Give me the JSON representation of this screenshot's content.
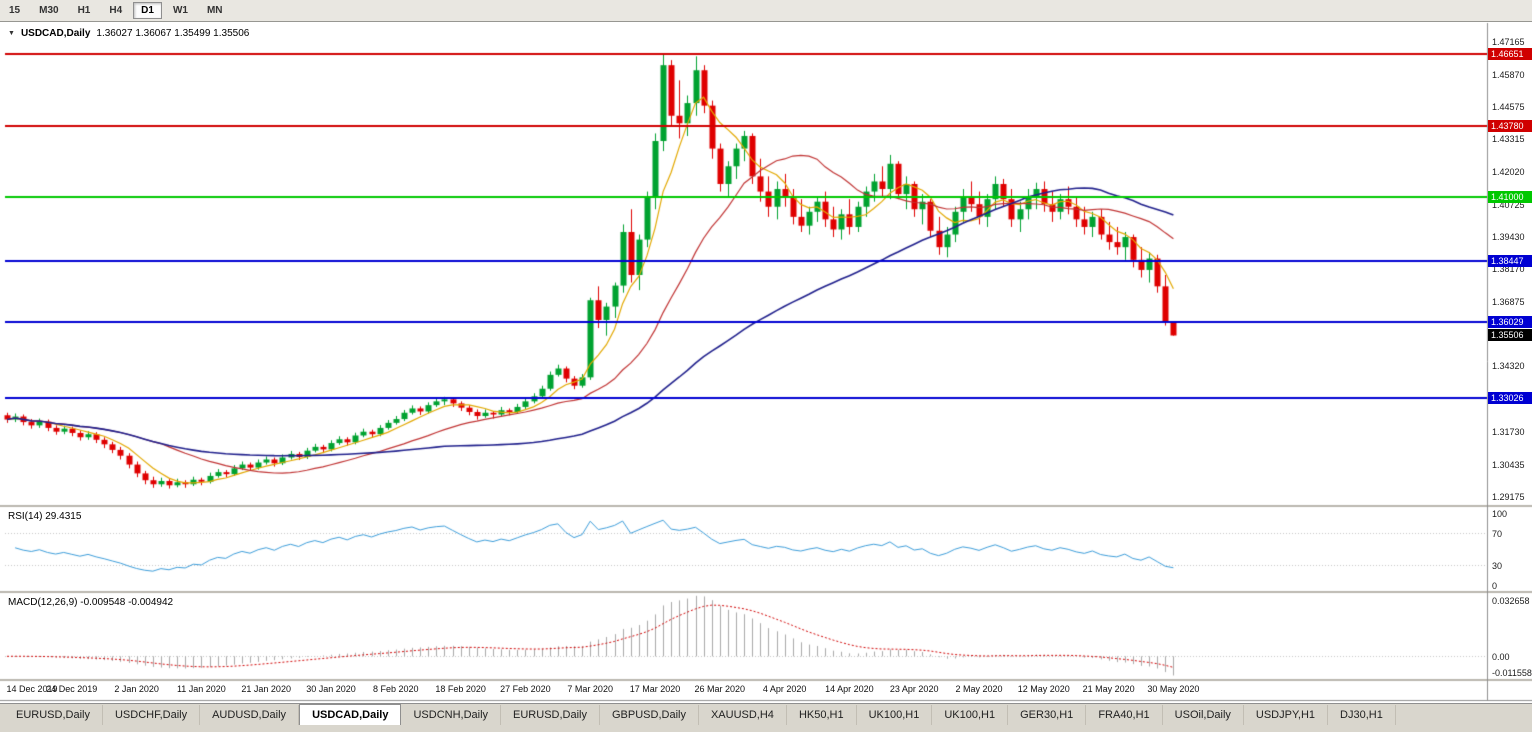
{
  "timeframe_toolbar": {
    "buttons": [
      "15",
      "M30",
      "H1",
      "H4",
      "D1",
      "W1",
      "MN"
    ],
    "active": "D1"
  },
  "chart_header": {
    "title": "USDCAD,Daily",
    "ohlc": "1.36027 1.36067 1.35499 1.35506"
  },
  "rsi_panel": {
    "label": "RSI(14) 29.4315",
    "last_value": 29.4315,
    "scale_ticks": [
      100,
      70,
      30,
      0
    ]
  },
  "macd_panel": {
    "label": "MACD(12,26,9) -0.009548 -0.004942",
    "last_main": -0.009548,
    "last_signal": -0.004942,
    "scale_top_label": "0.032658",
    "scale_zero_label": "0.00",
    "scale_bottom_label": "-0.011558"
  },
  "tabbar": {
    "tabs": [
      "EURUSD,Daily",
      "USDCHF,Daily",
      "AUDUSD,Daily",
      "USDCAD,Daily",
      "USDCNH,Daily",
      "EURUSD,Daily",
      "GBPUSD,Daily",
      "XAUUSD,H4",
      "HK50,H1",
      "UK100,H1",
      "UK100,H1",
      "GER30,H1",
      "FRA40,H1",
      "USOil,Daily",
      "USDJPY,H1",
      "DJ30,H1"
    ],
    "active_index": 3
  },
  "colors": {
    "bull": "#00A230",
    "bear": "#DF0000",
    "rsi_line": "#3B9CD9",
    "macd_bar": "#A8A8A8",
    "macd_signal": "#D00000",
    "current_price_badge": "#000000"
  },
  "chart_data": {
    "type": "candlestick",
    "title": "USDCAD,Daily",
    "y_range": [
      1.288,
      1.4775
    ],
    "current_price": 1.35506,
    "price_axis_ticks": [
      1.47165,
      1.4587,
      1.44575,
      1.43315,
      1.4202,
      1.40725,
      1.3943,
      1.3817,
      1.36875,
      1.3432,
      1.3173,
      1.30435,
      1.29175
    ],
    "hlines": [
      {
        "value": 1.46651,
        "color": "#D00000"
      },
      {
        "value": 1.4378,
        "color": "#D00000"
      },
      {
        "value": 1.41,
        "color": "#00C800"
      },
      {
        "value": 1.38447,
        "color": "#0000D2"
      },
      {
        "value": 1.36029,
        "color": "#0000D2"
      },
      {
        "value": 1.33026,
        "color": "#0000D2"
      }
    ],
    "moving_averages": [
      {
        "period": 6,
        "color": "#E2A800"
      },
      {
        "period": 20,
        "color": "#C03333"
      },
      {
        "period": 55,
        "color": "#20208C"
      }
    ],
    "indicators": [
      {
        "name": "RSI",
        "period": 14,
        "last": 29.4315
      },
      {
        "name": "MACD",
        "fast": 12,
        "slow": 26,
        "signal": 9,
        "last_main": -0.009548,
        "last_signal": -0.004942
      }
    ],
    "date_labels": [
      "14 Dec 2019",
      "24 Dec 2019",
      "2 Jan 2020",
      "11 Jan 2020",
      "21 Jan 2020",
      "30 Jan 2020",
      "8 Feb 2020",
      "18 Feb 2020",
      "27 Feb 2020",
      "7 Mar 2020",
      "17 Mar 2020",
      "26 Mar 2020",
      "4 Apr 2020",
      "14 Apr 2020",
      "23 Apr 2020",
      "2 May 2020",
      "12 May 2020",
      "21 May 2020",
      "30 May 2020"
    ],
    "date_label_candle_index": [
      0,
      8,
      16,
      24,
      32,
      40,
      48,
      56,
      64,
      72,
      80,
      88,
      96,
      104,
      112,
      120,
      128,
      136,
      144
    ],
    "candles": [
      [
        1.3235,
        1.3245,
        1.3205,
        1.3218
      ],
      [
        1.3218,
        1.3242,
        1.3208,
        1.323
      ],
      [
        1.323,
        1.3238,
        1.3195,
        1.3208
      ],
      [
        1.3208,
        1.322,
        1.3182,
        1.3195
      ],
      [
        1.3195,
        1.3222,
        1.3185,
        1.321
      ],
      [
        1.321,
        1.3218,
        1.3172,
        1.3185
      ],
      [
        1.3185,
        1.3195,
        1.3158,
        1.317
      ],
      [
        1.317,
        1.3194,
        1.316,
        1.3182
      ],
      [
        1.3182,
        1.319,
        1.3152,
        1.3165
      ],
      [
        1.3165,
        1.3175,
        1.3135,
        1.3148
      ],
      [
        1.3148,
        1.3172,
        1.3138,
        1.316
      ],
      [
        1.316,
        1.3168,
        1.3125,
        1.3138
      ],
      [
        1.3138,
        1.3148,
        1.3105,
        1.312
      ],
      [
        1.312,
        1.313,
        1.3085,
        1.3098
      ],
      [
        1.3098,
        1.311,
        1.306,
        1.3075
      ],
      [
        1.3075,
        1.3085,
        1.3025,
        1.304
      ],
      [
        1.304,
        1.3052,
        1.299,
        1.3005
      ],
      [
        1.3005,
        1.3015,
        1.2962,
        1.2978
      ],
      [
        1.2978,
        1.2992,
        1.2948,
        1.2962
      ],
      [
        1.2962,
        1.2988,
        1.2952,
        1.2975
      ],
      [
        1.2975,
        1.2982,
        1.2945,
        1.2958
      ],
      [
        1.2958,
        1.2984,
        1.295,
        1.297
      ],
      [
        1.297,
        1.2978,
        1.2948,
        1.2962
      ],
      [
        1.2962,
        1.2992,
        1.2955,
        1.298
      ],
      [
        1.298,
        1.2988,
        1.2958,
        1.2972
      ],
      [
        1.2972,
        1.3008,
        1.2965,
        1.2995
      ],
      [
        1.2995,
        1.3022,
        1.2988,
        1.301
      ],
      [
        1.301,
        1.3018,
        1.299,
        1.3002
      ],
      [
        1.3002,
        1.3038,
        1.2995,
        1.3025
      ],
      [
        1.3025,
        1.3052,
        1.3018,
        1.304
      ],
      [
        1.304,
        1.3048,
        1.3015,
        1.3028
      ],
      [
        1.3028,
        1.306,
        1.302,
        1.3048
      ],
      [
        1.3048,
        1.3072,
        1.304,
        1.306
      ],
      [
        1.306,
        1.3068,
        1.3032,
        1.3045
      ],
      [
        1.3045,
        1.308,
        1.3038,
        1.3068
      ],
      [
        1.3068,
        1.3094,
        1.306,
        1.3082
      ],
      [
        1.3082,
        1.309,
        1.3058,
        1.307
      ],
      [
        1.307,
        1.3106,
        1.3062,
        1.3095
      ],
      [
        1.3095,
        1.3122,
        1.3088,
        1.311
      ],
      [
        1.311,
        1.3118,
        1.3085,
        1.31
      ],
      [
        1.31,
        1.3136,
        1.3092,
        1.3125
      ],
      [
        1.3125,
        1.3152,
        1.3118,
        1.314
      ],
      [
        1.314,
        1.3148,
        1.3115,
        1.3128
      ],
      [
        1.3128,
        1.3166,
        1.312,
        1.3155
      ],
      [
        1.3155,
        1.3182,
        1.3148,
        1.317
      ],
      [
        1.317,
        1.3178,
        1.3146,
        1.316
      ],
      [
        1.316,
        1.3196,
        1.3152,
        1.3185
      ],
      [
        1.3185,
        1.3216,
        1.3178,
        1.3205
      ],
      [
        1.3205,
        1.3232,
        1.3198,
        1.322
      ],
      [
        1.322,
        1.3256,
        1.3212,
        1.3245
      ],
      [
        1.3245,
        1.3274,
        1.3238,
        1.3262
      ],
      [
        1.3262,
        1.327,
        1.3236,
        1.325
      ],
      [
        1.325,
        1.3286,
        1.3242,
        1.3275
      ],
      [
        1.3275,
        1.3302,
        1.3268,
        1.329
      ],
      [
        1.329,
        1.3308,
        1.3275,
        1.3298
      ],
      [
        1.3298,
        1.3305,
        1.3268,
        1.3282
      ],
      [
        1.3282,
        1.329,
        1.3252,
        1.3265
      ],
      [
        1.3265,
        1.3275,
        1.3235,
        1.3248
      ],
      [
        1.3248,
        1.3258,
        1.3218,
        1.3232
      ],
      [
        1.3232,
        1.3258,
        1.3225,
        1.3245
      ],
      [
        1.3245,
        1.3252,
        1.3222,
        1.3238
      ],
      [
        1.3238,
        1.3268,
        1.323,
        1.3255
      ],
      [
        1.3255,
        1.3262,
        1.3235,
        1.3248
      ],
      [
        1.3248,
        1.328,
        1.324,
        1.3268
      ],
      [
        1.3268,
        1.3302,
        1.326,
        1.329
      ],
      [
        1.329,
        1.3322,
        1.3282,
        1.331
      ],
      [
        1.331,
        1.3352,
        1.3302,
        1.334
      ],
      [
        1.334,
        1.3408,
        1.3332,
        1.3395
      ],
      [
        1.3395,
        1.3435,
        1.3388,
        1.342
      ],
      [
        1.342,
        1.3428,
        1.3365,
        1.338
      ],
      [
        1.338,
        1.339,
        1.3338,
        1.3352
      ],
      [
        1.3352,
        1.3398,
        1.3344,
        1.3385
      ],
      [
        1.3385,
        1.37,
        1.3375,
        1.369
      ],
      [
        1.369,
        1.3745,
        1.358,
        1.3612
      ],
      [
        1.3612,
        1.368,
        1.355,
        1.3665
      ],
      [
        1.3665,
        1.376,
        1.362,
        1.3748
      ],
      [
        1.3748,
        1.399,
        1.372,
        1.396
      ],
      [
        1.396,
        1.405,
        1.376,
        1.379
      ],
      [
        1.379,
        1.395,
        1.373,
        1.393
      ],
      [
        1.393,
        1.412,
        1.39,
        1.41
      ],
      [
        1.41,
        1.435,
        1.405,
        1.432
      ],
      [
        1.432,
        1.4668,
        1.428,
        1.462
      ],
      [
        1.462,
        1.464,
        1.438,
        1.442
      ],
      [
        1.442,
        1.456,
        1.433,
        1.439
      ],
      [
        1.439,
        1.45,
        1.434,
        1.447
      ],
      [
        1.447,
        1.4655,
        1.442,
        1.46
      ],
      [
        1.46,
        1.462,
        1.443,
        1.446
      ],
      [
        1.446,
        1.448,
        1.425,
        1.429
      ],
      [
        1.429,
        1.431,
        1.412,
        1.415
      ],
      [
        1.415,
        1.424,
        1.41,
        1.422
      ],
      [
        1.422,
        1.431,
        1.417,
        1.429
      ],
      [
        1.429,
        1.436,
        1.424,
        1.434
      ],
      [
        1.434,
        1.435,
        1.415,
        1.418
      ],
      [
        1.418,
        1.425,
        1.408,
        1.412
      ],
      [
        1.412,
        1.418,
        1.402,
        1.406
      ],
      [
        1.406,
        1.416,
        1.401,
        1.413
      ],
      [
        1.413,
        1.419,
        1.406,
        1.41
      ],
      [
        1.41,
        1.413,
        1.399,
        1.402
      ],
      [
        1.402,
        1.409,
        1.396,
        1.3985
      ],
      [
        1.3985,
        1.406,
        1.395,
        1.404
      ],
      [
        1.404,
        1.41,
        1.4,
        1.408
      ],
      [
        1.408,
        1.412,
        1.398,
        1.401
      ],
      [
        1.401,
        1.406,
        1.394,
        1.397
      ],
      [
        1.397,
        1.405,
        1.393,
        1.403
      ],
      [
        1.403,
        1.409,
        1.395,
        1.398
      ],
      [
        1.398,
        1.408,
        1.396,
        1.406
      ],
      [
        1.406,
        1.414,
        1.402,
        1.412
      ],
      [
        1.412,
        1.419,
        1.408,
        1.416
      ],
      [
        1.416,
        1.422,
        1.41,
        1.413
      ],
      [
        1.413,
        1.4265,
        1.409,
        1.423
      ],
      [
        1.423,
        1.424,
        1.409,
        1.411
      ],
      [
        1.411,
        1.418,
        1.405,
        1.415
      ],
      [
        1.415,
        1.416,
        1.402,
        1.405
      ],
      [
        1.405,
        1.411,
        1.399,
        1.408
      ],
      [
        1.408,
        1.409,
        1.394,
        1.3965
      ],
      [
        1.3965,
        1.402,
        1.387,
        1.39
      ],
      [
        1.39,
        1.398,
        1.386,
        1.395
      ],
      [
        1.395,
        1.406,
        1.392,
        1.404
      ],
      [
        1.404,
        1.413,
        1.4,
        1.41
      ],
      [
        1.41,
        1.416,
        1.404,
        1.407
      ],
      [
        1.407,
        1.412,
        1.399,
        1.402
      ],
      [
        1.402,
        1.411,
        1.398,
        1.409
      ],
      [
        1.409,
        1.418,
        1.405,
        1.415
      ],
      [
        1.415,
        1.417,
        1.406,
        1.409
      ],
      [
        1.409,
        1.413,
        1.398,
        1.401
      ],
      [
        1.401,
        1.408,
        1.396,
        1.405
      ],
      [
        1.405,
        1.413,
        1.401,
        1.41
      ],
      [
        1.41,
        1.4155,
        1.405,
        1.413
      ],
      [
        1.413,
        1.416,
        1.404,
        1.407
      ],
      [
        1.407,
        1.412,
        1.4,
        1.404
      ],
      [
        1.404,
        1.411,
        1.401,
        1.409
      ],
      [
        1.409,
        1.414,
        1.403,
        1.406
      ],
      [
        1.406,
        1.41,
        1.398,
        1.401
      ],
      [
        1.401,
        1.406,
        1.395,
        1.398
      ],
      [
        1.398,
        1.404,
        1.394,
        1.402
      ],
      [
        1.402,
        1.405,
        1.393,
        1.395
      ],
      [
        1.395,
        1.4,
        1.389,
        1.392
      ],
      [
        1.392,
        1.398,
        1.387,
        1.39
      ],
      [
        1.39,
        1.396,
        1.385,
        1.394
      ],
      [
        1.394,
        1.395,
        1.382,
        1.385
      ],
      [
        1.385,
        1.39,
        1.378,
        1.381
      ],
      [
        1.381,
        1.388,
        1.376,
        1.3855
      ],
      [
        1.3855,
        1.387,
        1.372,
        1.3745
      ],
      [
        1.3745,
        1.379,
        1.359,
        1.3603
      ],
      [
        1.36027,
        1.36067,
        1.35499,
        1.35506
      ]
    ]
  }
}
